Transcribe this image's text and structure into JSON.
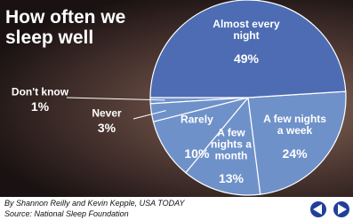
{
  "chart_data": {
    "type": "pie",
    "title": "How often we sleep well",
    "categories": [
      "Almost every night",
      "A few nights a week",
      "A few nights a month",
      "Rarely",
      "Never",
      "Don't know"
    ],
    "values": [
      49,
      24,
      13,
      10,
      3,
      1
    ],
    "value_labels": [
      "49%",
      "24%",
      "13%",
      "10%",
      "3%",
      "1%"
    ],
    "colors": [
      "#4d6cb3",
      "#6f91c9",
      "#6f91c9",
      "#6f91c9",
      "#6f91c9",
      "#6f91c9"
    ],
    "byline": "By Shannon Reilly and Kevin Kepple, USA TODAY",
    "source": "Source: National Sleep Foundation"
  }
}
